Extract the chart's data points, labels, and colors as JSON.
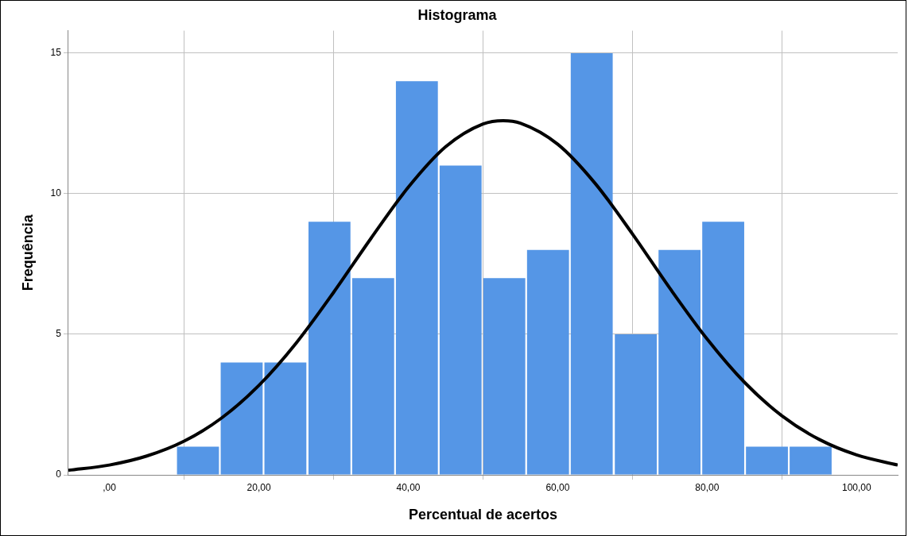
{
  "chart_data": {
    "type": "histogram",
    "title": "Histograma",
    "xlabel": "Percentual de acertos",
    "ylabel": "Frequência",
    "bins": [
      8.9,
      14.8,
      20.6,
      26.5,
      32.4,
      38.2,
      44.1,
      49.9,
      55.8,
      61.6,
      67.5,
      73.4,
      79.2,
      85.1,
      90.9,
      96.8
    ],
    "values": [
      1,
      4,
      4,
      9,
      7,
      14,
      11,
      7,
      8,
      15,
      5,
      8,
      9,
      1,
      1
    ],
    "color": "#5596e6",
    "xlim": [
      -5.5,
      105.5
    ],
    "xticks": [
      {
        "value": 0,
        "label": ",00"
      },
      {
        "value": 20,
        "label": "20,00"
      },
      {
        "value": 40,
        "label": "40,00"
      },
      {
        "value": 60,
        "label": "60,00"
      },
      {
        "value": 80,
        "label": "80,00"
      },
      {
        "value": 100,
        "label": "100,00"
      }
    ],
    "ylim": [
      0,
      15.8
    ],
    "yticks": [
      0,
      5,
      10,
      15
    ],
    "grid": true,
    "series": [
      {
        "type": "line",
        "color": "#000000",
        "x": [
          -5.5,
          0,
          5,
          10,
          15,
          20,
          25,
          30,
          35,
          40,
          45,
          50,
          52.7,
          55,
          60,
          65,
          70,
          75,
          80,
          85,
          90,
          95,
          100,
          105.5
        ],
        "values": [
          0.16,
          0.35,
          0.67,
          1.2,
          2.02,
          3.18,
          4.69,
          6.49,
          8.41,
          10.23,
          11.67,
          12.48,
          12.6,
          12.51,
          11.76,
          10.37,
          8.57,
          6.64,
          4.83,
          3.29,
          2.1,
          1.26,
          0.71,
          0.35
        ]
      }
    ]
  }
}
